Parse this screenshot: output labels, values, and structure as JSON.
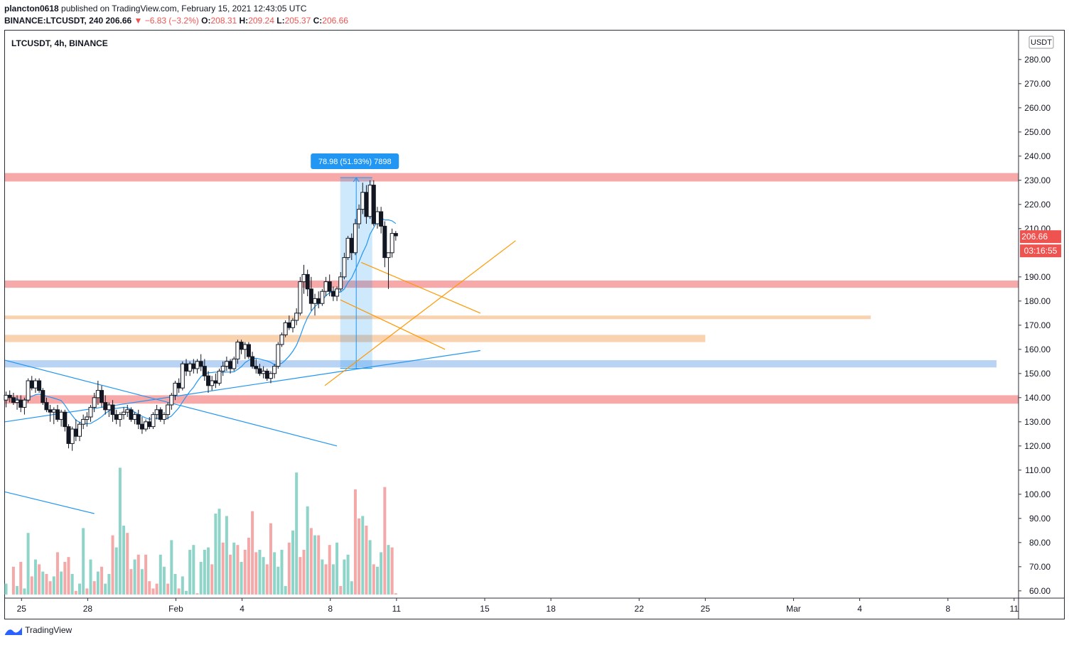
{
  "header": {
    "author": "plancton0618",
    "published_text": "published on TradingView.com, February 15, 2021 12:43:05 UTC",
    "symbol_line": "BINANCE:LTCUSDT, 240",
    "last": "206.66",
    "change": "▼ −6.83 (−3.2%)",
    "o_label": "O:",
    "o_val": "208.31",
    "h_label": "H:",
    "h_val": "209.24",
    "l_label": "L:",
    "l_val": "205.37",
    "c_label": "C:",
    "c_val": "206.66"
  },
  "chart_data": {
    "type": "candlestick",
    "title": "LTCUSDT, 4h, BINANCE",
    "currency": "USDT",
    "price_ticks": [
      "280.00",
      "270.00",
      "260.00",
      "250.00",
      "240.00",
      "230.00",
      "220.00",
      "210.00",
      "190.00",
      "180.00",
      "170.00",
      "160.00",
      "150.00",
      "140.00",
      "130.00",
      "120.00",
      "110.00",
      "100.00",
      "90.00",
      "80.00",
      "70.00",
      "60.00"
    ],
    "price_tick_values": [
      280,
      270,
      260,
      250,
      240,
      230,
      220,
      210,
      190,
      180,
      170,
      160,
      150,
      140,
      130,
      120,
      110,
      100,
      90,
      80,
      70,
      60
    ],
    "ylim": [
      57,
      292
    ],
    "x_ticks": [
      "25",
      "28",
      "Feb",
      "4",
      "8",
      "11",
      "15",
      "18",
      "22",
      "25",
      "Mar",
      "4",
      "8",
      "11"
    ],
    "x_tick_days": [
      25,
      28,
      32,
      35,
      39,
      42,
      46,
      49,
      53,
      56,
      60,
      63,
      67,
      70
    ],
    "xlim_days": [
      24.25,
      70.2
    ],
    "last_price_label": "206.66",
    "countdown_label": "03:16:55",
    "last_price": 206.66,
    "measure": {
      "label": "78.98 (51.93%) 7898",
      "from_price": 152.1,
      "to_price": 231.1,
      "from_day": 39.45,
      "to_day": 40.9
    },
    "zones": [
      {
        "kind": "resistance",
        "low": 229.5,
        "high": 233,
        "from_day": 24.25,
        "to_day": 70.2,
        "color": "#f7a9a9"
      },
      {
        "kind": "resistance",
        "low": 185.5,
        "high": 188.5,
        "from_day": 24.25,
        "to_day": 70.2,
        "color": "#f7a9a9"
      },
      {
        "kind": "support",
        "low": 172.5,
        "high": 174,
        "from_day": 24.25,
        "to_day": 63.5,
        "color": "#f9d3b0"
      },
      {
        "kind": "support",
        "low": 163,
        "high": 166,
        "from_day": 24.25,
        "to_day": 56,
        "color": "#f9d3b0"
      },
      {
        "kind": "support",
        "low": 152.5,
        "high": 155.5,
        "from_day": 24.25,
        "to_day": 69.2,
        "color": "#b9d3f5"
      },
      {
        "kind": "support",
        "low": 137.5,
        "high": 141,
        "from_day": 24.25,
        "to_day": 70.2,
        "color": "#f7a9a9"
      }
    ],
    "lines": [
      {
        "color": "#2196f3",
        "from": [
          24.25,
          155.5
        ],
        "to": [
          39.3,
          120
        ]
      },
      {
        "color": "#2196f3",
        "from": [
          24.25,
          130
        ],
        "to": [
          45.8,
          159.5
        ]
      },
      {
        "color": "#2196f3",
        "from": [
          24.25,
          101
        ],
        "to": [
          28.3,
          92
        ]
      },
      {
        "color": "#ff9800",
        "from": [
          38.75,
          145
        ],
        "to": [
          47.4,
          205
        ]
      },
      {
        "color": "#ff9800",
        "from": [
          39.45,
          180.5
        ],
        "to": [
          44.2,
          160
        ]
      },
      {
        "color": "#ff9800",
        "from": [
          40.4,
          196
        ],
        "to": [
          45.8,
          175
        ]
      }
    ],
    "candles": [
      [
        0,
        139,
        142.5,
        136,
        141
      ],
      [
        1,
        141,
        143,
        138,
        140
      ],
      [
        2,
        140,
        142,
        137,
        138
      ],
      [
        3,
        138,
        141,
        135,
        139
      ],
      [
        4,
        139,
        141,
        134,
        136
      ],
      [
        5,
        136,
        140,
        133,
        139
      ],
      [
        6,
        139,
        148,
        138,
        147
      ],
      [
        7,
        147,
        149,
        143,
        144
      ],
      [
        8,
        144,
        148,
        142,
        147
      ],
      [
        9,
        147,
        148,
        142,
        143
      ],
      [
        10,
        143,
        144,
        137,
        138
      ],
      [
        11,
        138,
        140,
        134,
        135
      ],
      [
        12,
        135,
        137,
        130,
        134
      ],
      [
        13,
        134,
        136,
        129,
        135
      ],
      [
        14,
        135,
        137,
        130,
        131
      ],
      [
        15,
        131,
        135,
        128,
        134
      ],
      [
        16,
        134,
        135,
        126,
        128
      ],
      [
        17,
        128,
        129,
        119,
        121
      ],
      [
        18,
        121,
        128,
        118,
        127
      ],
      [
        19,
        127,
        131,
        122,
        124
      ],
      [
        20,
        124,
        130,
        122,
        129
      ],
      [
        21,
        129,
        133,
        127,
        131
      ],
      [
        22,
        131,
        134,
        128,
        132
      ],
      [
        23,
        132,
        137,
        130,
        136
      ],
      [
        24,
        136,
        142,
        134,
        140
      ],
      [
        25,
        140,
        147,
        137,
        143
      ],
      [
        26,
        143,
        145,
        136,
        138
      ],
      [
        27,
        138,
        141,
        133,
        135
      ],
      [
        28,
        135,
        138,
        132,
        137
      ],
      [
        29,
        137,
        139,
        130,
        133
      ],
      [
        30,
        133,
        135,
        129,
        131
      ],
      [
        31,
        131,
        134,
        128,
        133
      ],
      [
        32,
        133,
        136,
        131,
        134
      ],
      [
        33,
        134,
        137,
        132,
        135
      ],
      [
        34,
        135,
        136,
        130,
        131
      ],
      [
        35,
        131,
        134,
        129,
        133
      ],
      [
        36,
        133,
        135,
        127,
        129
      ],
      [
        37,
        129,
        132,
        125,
        127
      ],
      [
        38,
        127,
        131,
        126,
        130
      ],
      [
        39,
        130,
        132,
        127,
        128
      ],
      [
        40,
        128,
        134,
        127,
        133
      ],
      [
        41,
        133,
        137,
        131,
        135
      ],
      [
        42,
        135,
        136,
        130,
        131
      ],
      [
        43,
        131,
        134,
        129,
        133
      ],
      [
        44,
        133,
        138,
        131,
        137
      ],
      [
        45,
        137,
        142,
        135,
        141
      ],
      [
        46,
        141,
        147,
        139,
        146
      ],
      [
        47,
        146,
        148,
        142,
        144
      ],
      [
        48,
        144,
        155,
        143,
        154
      ],
      [
        49,
        154,
        156,
        149,
        151
      ],
      [
        50,
        151,
        155,
        149,
        154
      ],
      [
        51,
        154,
        156,
        150,
        152
      ],
      [
        52,
        152,
        156,
        150,
        155
      ],
      [
        53,
        155,
        158,
        151,
        153
      ],
      [
        54,
        153,
        156,
        147,
        149
      ],
      [
        55,
        149,
        151,
        142,
        145
      ],
      [
        56,
        145,
        149,
        143,
        147
      ],
      [
        57,
        147,
        150,
        144,
        146
      ],
      [
        58,
        146,
        152,
        145,
        151
      ],
      [
        59,
        151,
        155,
        149,
        153
      ],
      [
        60,
        153,
        157,
        151,
        155
      ],
      [
        61,
        155,
        156,
        150,
        152
      ],
      [
        62,
        152,
        157,
        151,
        156
      ],
      [
        63,
        156,
        164,
        154,
        163
      ],
      [
        64,
        163,
        164,
        158,
        160
      ],
      [
        65,
        160,
        163,
        156,
        162
      ],
      [
        66,
        162,
        163,
        156,
        157
      ],
      [
        67,
        157,
        159,
        152,
        153
      ],
      [
        68,
        153,
        156,
        150,
        152
      ],
      [
        69,
        152,
        154,
        149,
        150
      ],
      [
        70,
        150,
        153,
        148,
        151
      ],
      [
        71,
        151,
        152,
        147,
        148
      ],
      [
        72,
        148,
        151,
        146,
        150
      ],
      [
        73,
        150,
        154,
        148,
        153
      ],
      [
        74,
        153,
        163,
        152,
        162
      ],
      [
        75,
        162,
        167,
        161,
        166
      ],
      [
        76,
        166,
        172,
        165,
        171
      ],
      [
        77,
        171,
        174,
        168,
        169
      ],
      [
        78,
        169,
        173,
        167,
        172
      ],
      [
        79,
        172,
        177,
        170,
        175
      ],
      [
        80,
        175,
        190,
        174,
        188
      ],
      [
        81,
        188,
        195,
        183,
        191
      ],
      [
        82,
        191,
        193,
        182,
        185
      ],
      [
        83,
        185,
        190,
        176,
        179
      ],
      [
        84,
        179,
        183,
        174,
        181
      ],
      [
        85,
        181,
        184,
        177,
        179
      ],
      [
        86,
        179,
        185,
        178,
        184
      ],
      [
        87,
        184,
        190,
        182,
        188
      ],
      [
        88,
        188,
        191,
        182,
        184
      ],
      [
        89,
        184,
        186,
        180,
        182
      ],
      [
        90,
        182,
        186,
        180,
        185
      ],
      [
        91,
        185,
        192,
        184,
        190
      ],
      [
        92,
        190,
        200,
        189,
        198
      ],
      [
        93,
        198,
        207,
        197,
        206
      ],
      [
        94,
        206,
        208,
        197,
        200
      ],
      [
        95,
        200,
        214,
        199,
        212
      ],
      [
        96,
        212,
        220,
        210,
        218
      ],
      [
        97,
        218,
        229,
        216,
        225
      ],
      [
        98,
        225,
        228,
        212,
        215
      ],
      [
        99,
        215,
        230,
        214,
        228
      ],
      [
        100,
        228,
        230,
        211,
        212
      ],
      [
        101,
        212,
        219,
        210,
        217
      ],
      [
        102,
        217,
        219,
        208,
        211
      ],
      [
        103,
        211,
        213,
        194,
        198
      ],
      [
        104,
        198,
        200,
        185,
        200
      ],
      [
        105,
        200,
        210,
        198,
        208
      ],
      [
        106,
        208,
        209,
        205,
        207
      ]
    ],
    "volumes": [
      [
        0,
        63,
        1
      ],
      [
        1,
        58,
        1
      ],
      [
        2,
        70,
        0
      ],
      [
        3,
        62,
        1
      ],
      [
        4,
        72,
        0
      ],
      [
        5,
        61,
        1
      ],
      [
        6,
        84,
        1
      ],
      [
        7,
        66,
        0
      ],
      [
        8,
        73,
        1
      ],
      [
        9,
        71,
        0
      ],
      [
        10,
        68,
        1
      ],
      [
        11,
        67,
        0
      ],
      [
        12,
        64,
        0
      ],
      [
        13,
        66,
        1
      ],
      [
        14,
        76,
        0
      ],
      [
        15,
        68,
        1
      ],
      [
        16,
        72,
        0
      ],
      [
        17,
        74,
        0
      ],
      [
        18,
        67,
        1
      ],
      [
        19,
        60,
        0
      ],
      [
        20,
        63,
        1
      ],
      [
        21,
        86,
        1
      ],
      [
        22,
        61,
        0
      ],
      [
        23,
        73,
        1
      ],
      [
        24,
        64,
        0
      ],
      [
        25,
        68,
        1
      ],
      [
        26,
        70,
        0
      ],
      [
        27,
        63,
        1
      ],
      [
        28,
        67,
        1
      ],
      [
        29,
        83,
        0
      ],
      [
        30,
        78,
        1
      ],
      [
        31,
        111,
        1
      ],
      [
        32,
        87,
        1
      ],
      [
        33,
        84,
        0
      ],
      [
        34,
        69,
        0
      ],
      [
        35,
        73,
        1
      ],
      [
        36,
        75,
        0
      ],
      [
        37,
        69,
        1
      ],
      [
        38,
        75,
        0
      ],
      [
        39,
        64,
        0
      ],
      [
        40,
        61,
        0
      ],
      [
        41,
        63,
        0
      ],
      [
        42,
        75,
        1
      ],
      [
        43,
        70,
        1
      ],
      [
        44,
        63,
        0
      ],
      [
        45,
        81,
        1
      ],
      [
        46,
        67,
        1
      ],
      [
        47,
        61,
        0
      ],
      [
        48,
        66,
        1
      ],
      [
        49,
        60,
        1
      ],
      [
        50,
        77,
        1
      ],
      [
        51,
        79,
        1
      ],
      [
        52,
        59,
        0
      ],
      [
        53,
        72,
        1
      ],
      [
        54,
        77,
        1
      ],
      [
        55,
        78,
        1
      ],
      [
        56,
        71,
        0
      ],
      [
        57,
        92,
        1
      ],
      [
        58,
        94,
        1
      ],
      [
        59,
        80,
        0
      ],
      [
        60,
        91,
        1
      ],
      [
        61,
        75,
        0
      ],
      [
        62,
        80,
        1
      ],
      [
        63,
        79,
        0
      ],
      [
        64,
        72,
        1
      ],
      [
        65,
        77,
        0
      ],
      [
        66,
        82,
        0
      ],
      [
        67,
        93,
        0
      ],
      [
        68,
        76,
        0
      ],
      [
        69,
        77,
        1
      ],
      [
        70,
        74,
        1
      ],
      [
        71,
        71,
        0
      ],
      [
        72,
        88,
        0
      ],
      [
        73,
        76,
        1
      ],
      [
        74,
        70,
        1
      ],
      [
        75,
        77,
        1
      ],
      [
        76,
        62,
        1
      ],
      [
        77,
        80,
        0
      ],
      [
        78,
        85,
        1
      ],
      [
        79,
        109,
        1
      ],
      [
        80,
        74,
        0
      ],
      [
        81,
        77,
        0
      ],
      [
        82,
        95,
        1
      ],
      [
        83,
        86,
        0
      ],
      [
        84,
        83,
        1
      ],
      [
        85,
        83,
        0
      ],
      [
        86,
        73,
        1
      ],
      [
        87,
        71,
        0
      ],
      [
        88,
        79,
        0
      ],
      [
        89,
        71,
        1
      ],
      [
        90,
        80,
        1
      ],
      [
        91,
        62,
        0
      ],
      [
        92,
        73,
        1
      ],
      [
        93,
        75,
        1
      ],
      [
        94,
        64,
        1
      ],
      [
        95,
        102,
        0
      ],
      [
        96,
        90,
        0
      ],
      [
        97,
        91,
        1
      ],
      [
        98,
        87,
        0
      ],
      [
        99,
        81,
        1
      ],
      [
        100,
        71,
        0
      ],
      [
        101,
        70,
        1
      ],
      [
        102,
        76,
        1
      ],
      [
        103,
        103,
        0
      ],
      [
        104,
        79,
        1
      ],
      [
        105,
        78,
        0
      ],
      [
        106,
        59,
        0
      ]
    ]
  },
  "footer": {
    "brand": "TradingView"
  }
}
